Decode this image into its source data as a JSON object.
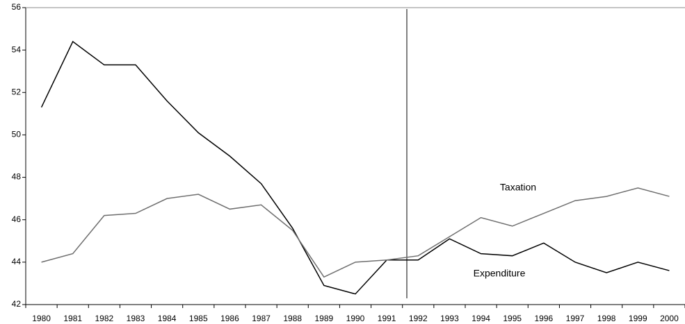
{
  "chart_data": {
    "type": "line",
    "categories": [
      "1980",
      "1981",
      "1982",
      "1983",
      "1984",
      "1985",
      "1986",
      "1987",
      "1988",
      "1989",
      "1990",
      "1991",
      "1992",
      "1993",
      "1994",
      "1995",
      "1996",
      "1997",
      "1998",
      "1999",
      "2000"
    ],
    "series": [
      {
        "name": "Expenditure",
        "color": "#000000",
        "values": [
          51.3,
          54.4,
          53.3,
          53.3,
          51.6,
          50.1,
          49.0,
          47.7,
          45.6,
          42.9,
          42.5,
          44.1,
          44.1,
          45.1,
          44.4,
          44.3,
          44.9,
          44.0,
          43.5,
          44.0,
          43.6
        ]
      },
      {
        "name": "Taxation",
        "color": "#6e6e6e",
        "values": [
          44.0,
          44.4,
          46.2,
          46.3,
          47.0,
          47.2,
          46.5,
          46.7,
          45.5,
          43.3,
          44.0,
          44.1,
          44.3,
          45.2,
          46.1,
          45.7,
          46.3,
          46.9,
          47.1,
          47.5,
          47.1
        ]
      }
    ],
    "ylim": [
      42,
      56
    ],
    "yticks": [
      42,
      44,
      46,
      48,
      50,
      52,
      54,
      56
    ],
    "grid": false
  }
}
